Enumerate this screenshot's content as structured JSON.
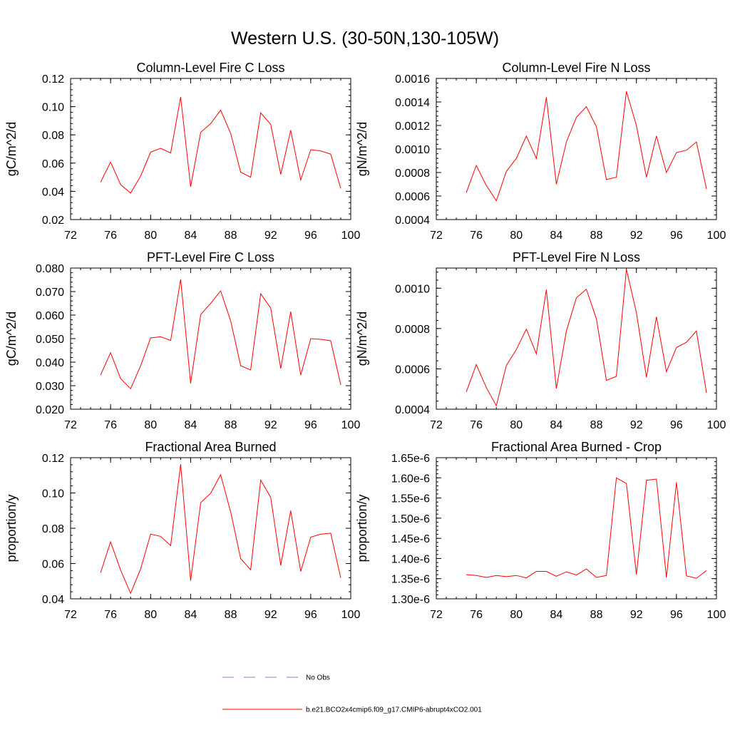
{
  "figure": {
    "title": "Western U.S. (30-50N,130-105W)"
  },
  "colors": {
    "series": "#ff0000",
    "obs": "#7b84c9",
    "axis": "#000000"
  },
  "legend": {
    "entries": [
      {
        "label": "No Obs",
        "style": "dashed",
        "color": "#7b84c9"
      },
      {
        "label": "b.e21.BCO2x4cmip6.f09_g17.CMIP6-abrupt4xCO2.001",
        "style": "solid",
        "color": "#ff0000"
      }
    ]
  },
  "chart_data": [
    {
      "type": "line",
      "title": "Column-Level Fire C Loss",
      "xlabel": "",
      "ylabel": "gC/m^2/d",
      "xlim": [
        72,
        100
      ],
      "ylim": [
        0.02,
        0.12
      ],
      "xticks": [
        72,
        76,
        80,
        84,
        88,
        92,
        96,
        100
      ],
      "xtick_labels": [
        "72",
        "76",
        "80",
        "84",
        "88",
        "92",
        "96",
        "100"
      ],
      "yticks": [
        0.02,
        0.04,
        0.06,
        0.08,
        0.1,
        0.12
      ],
      "ytick_labels": [
        "0.02",
        "0.04",
        "0.06",
        "0.08",
        "0.10",
        "0.12"
      ],
      "x": [
        75,
        76,
        77,
        78,
        79,
        80,
        81,
        82,
        83,
        84,
        85,
        86,
        87,
        88,
        89,
        90,
        91,
        92,
        93,
        94,
        95,
        96,
        97,
        98,
        99
      ],
      "series": [
        {
          "name": "b.e21.BCO2x4cmip6.f09_g17.CMIP6-abrupt4xCO2.001",
          "values": [
            0.0465,
            0.0607,
            0.0448,
            0.0388,
            0.0508,
            0.0678,
            0.0705,
            0.0672,
            0.1068,
            0.0433,
            0.0818,
            0.088,
            0.0975,
            0.081,
            0.0536,
            0.05,
            0.0956,
            0.0875,
            0.052,
            0.0833,
            0.048,
            0.0695,
            0.0686,
            0.0664,
            0.042
          ]
        }
      ]
    },
    {
      "type": "line",
      "title": "Column-Level Fire N Loss",
      "xlabel": "",
      "ylabel": "gN/m^2/d",
      "xlim": [
        72,
        100
      ],
      "ylim": [
        0.0004,
        0.0016
      ],
      "xticks": [
        72,
        76,
        80,
        84,
        88,
        92,
        96,
        100
      ],
      "xtick_labels": [
        "72",
        "76",
        "80",
        "84",
        "88",
        "92",
        "96",
        "100"
      ],
      "yticks": [
        0.0004,
        0.0006,
        0.0008,
        0.001,
        0.0012,
        0.0014,
        0.0016
      ],
      "ytick_labels": [
        "0.0004",
        "0.0006",
        "0.0008",
        "0.0010",
        "0.0012",
        "0.0014",
        "0.0016"
      ],
      "x": [
        75,
        76,
        77,
        78,
        79,
        80,
        81,
        82,
        83,
        84,
        85,
        86,
        87,
        88,
        89,
        90,
        91,
        92,
        93,
        94,
        95,
        96,
        97,
        98,
        99
      ],
      "series": [
        {
          "name": "b.e21.BCO2x4cmip6.f09_g17.CMIP6-abrupt4xCO2.001",
          "values": [
            0.00063,
            0.00086,
            0.00069,
            0.00056,
            0.00081,
            0.00092,
            0.00111,
            0.00092,
            0.00144,
            0.0007,
            0.00106,
            0.00127,
            0.00136,
            0.00119,
            0.00074,
            0.00076,
            0.00149,
            0.0012,
            0.00076,
            0.00111,
            0.0008,
            0.00097,
            0.00099,
            0.00106,
            0.00066
          ]
        }
      ]
    },
    {
      "type": "line",
      "title": "PFT-Level Fire C Loss",
      "xlabel": "",
      "ylabel": "gC/m^2/d",
      "xlim": [
        72,
        100
      ],
      "ylim": [
        0.02,
        0.08
      ],
      "xticks": [
        72,
        76,
        80,
        84,
        88,
        92,
        96,
        100
      ],
      "xtick_labels": [
        "72",
        "76",
        "80",
        "84",
        "88",
        "92",
        "96",
        "100"
      ],
      "yticks": [
        0.02,
        0.03,
        0.04,
        0.05,
        0.06,
        0.07,
        0.08
      ],
      "ytick_labels": [
        "0.020",
        "0.030",
        "0.040",
        "0.050",
        "0.060",
        "0.070",
        "0.080"
      ],
      "x": [
        75,
        76,
        77,
        78,
        79,
        80,
        81,
        82,
        83,
        84,
        85,
        86,
        87,
        88,
        89,
        90,
        91,
        92,
        93,
        94,
        95,
        96,
        97,
        98,
        99
      ],
      "series": [
        {
          "name": "b.e21.BCO2x4cmip6.f09_g17.CMIP6-abrupt4xCO2.001",
          "values": [
            0.0345,
            0.044,
            0.033,
            0.0287,
            0.0385,
            0.0503,
            0.0508,
            0.0492,
            0.0752,
            0.031,
            0.0602,
            0.065,
            0.0703,
            0.0575,
            0.0385,
            0.0367,
            0.0691,
            0.063,
            0.0373,
            0.0615,
            0.0345,
            0.05,
            0.0497,
            0.0491,
            0.0303
          ]
        }
      ]
    },
    {
      "type": "line",
      "title": "PFT-Level Fire N Loss",
      "xlabel": "",
      "ylabel": "gN/m^2/d",
      "xlim": [
        72,
        100
      ],
      "ylim": [
        0.0004,
        0.0011
      ],
      "xticks": [
        72,
        76,
        80,
        84,
        88,
        92,
        96,
        100
      ],
      "xtick_labels": [
        "72",
        "76",
        "80",
        "84",
        "88",
        "92",
        "96",
        "100"
      ],
      "yticks": [
        0.0004,
        0.0006,
        0.0008,
        0.001
      ],
      "ytick_labels": [
        "0.0004",
        "0.0006",
        "0.0008",
        "0.0010"
      ],
      "x": [
        75,
        76,
        77,
        78,
        79,
        80,
        81,
        82,
        83,
        84,
        85,
        86,
        87,
        88,
        89,
        90,
        91,
        92,
        93,
        94,
        95,
        96,
        97,
        98,
        99
      ],
      "series": [
        {
          "name": "b.e21.BCO2x4cmip6.f09_g17.CMIP6-abrupt4xCO2.001",
          "values": [
            0.000486,
            0.000621,
            0.000507,
            0.000417,
            0.000617,
            0.000696,
            0.000797,
            0.000674,
            0.000993,
            0.000503,
            0.000788,
            0.000953,
            0.000995,
            0.000848,
            0.000543,
            0.000563,
            0.001094,
            0.000879,
            0.000558,
            0.000858,
            0.000586,
            0.000706,
            0.000732,
            0.000788,
            0.000481
          ]
        }
      ]
    },
    {
      "type": "line",
      "title": "Fractional Area Burned",
      "xlabel": "",
      "ylabel": "proportion/y",
      "xlim": [
        72,
        100
      ],
      "ylim": [
        0.04,
        0.12
      ],
      "xticks": [
        72,
        76,
        80,
        84,
        88,
        92,
        96,
        100
      ],
      "xtick_labels": [
        "72",
        "76",
        "80",
        "84",
        "88",
        "92",
        "96",
        "100"
      ],
      "yticks": [
        0.04,
        0.06,
        0.08,
        0.1,
        0.12
      ],
      "ytick_labels": [
        "0.04",
        "0.06",
        "0.08",
        "0.10",
        "0.12"
      ],
      "x": [
        75,
        76,
        77,
        78,
        79,
        80,
        81,
        82,
        83,
        84,
        85,
        86,
        87,
        88,
        89,
        90,
        91,
        92,
        93,
        94,
        95,
        96,
        97,
        98,
        99
      ],
      "series": [
        {
          "name": "b.e21.BCO2x4cmip6.f09_g17.CMIP6-abrupt4xCO2.001",
          "values": [
            0.0548,
            0.0723,
            0.0563,
            0.0431,
            0.057,
            0.0767,
            0.0754,
            0.0702,
            0.1163,
            0.0503,
            0.0945,
            0.0998,
            0.1103,
            0.0892,
            0.0628,
            0.0565,
            0.1073,
            0.0975,
            0.059,
            0.09,
            0.0555,
            0.075,
            0.0766,
            0.0772,
            0.0518
          ]
        }
      ]
    },
    {
      "type": "line",
      "title": "Fractional Area Burned - Crop",
      "xlabel": "",
      "ylabel": "proportion/y",
      "xlim": [
        72,
        100
      ],
      "ylim": [
        1.3e-06,
        1.65e-06
      ],
      "xticks": [
        72,
        76,
        80,
        84,
        88,
        92,
        96,
        100
      ],
      "xtick_labels": [
        "72",
        "76",
        "80",
        "84",
        "88",
        "92",
        "96",
        "100"
      ],
      "yticks": [
        1.3e-06,
        1.35e-06,
        1.4e-06,
        1.45e-06,
        1.5e-06,
        1.55e-06,
        1.6e-06,
        1.65e-06
      ],
      "ytick_labels": [
        "1.30e-6",
        "1.35e-6",
        "1.40e-6",
        "1.45e-6",
        "1.50e-6",
        "1.55e-6",
        "1.60e-6",
        "1.65e-6"
      ],
      "x": [
        75,
        76,
        77,
        78,
        79,
        80,
        81,
        82,
        83,
        84,
        85,
        86,
        87,
        88,
        89,
        90,
        91,
        92,
        93,
        94,
        95,
        96,
        97,
        98,
        99
      ],
      "series": [
        {
          "name": "b.e21.BCO2x4cmip6.f09_g17.CMIP6-abrupt4xCO2.001",
          "values": [
            1.36e-06,
            1.358e-06,
            1.353e-06,
            1.358e-06,
            1.355e-06,
            1.358e-06,
            1.352e-06,
            1.368e-06,
            1.368e-06,
            1.356e-06,
            1.367e-06,
            1.359e-06,
            1.374e-06,
            1.353e-06,
            1.358e-06,
            1.6e-06,
            1.586e-06,
            1.36e-06,
            1.594e-06,
            1.597e-06,
            1.353e-06,
            1.589e-06,
            1.357e-06,
            1.351e-06,
            1.37e-06
          ]
        }
      ]
    }
  ]
}
